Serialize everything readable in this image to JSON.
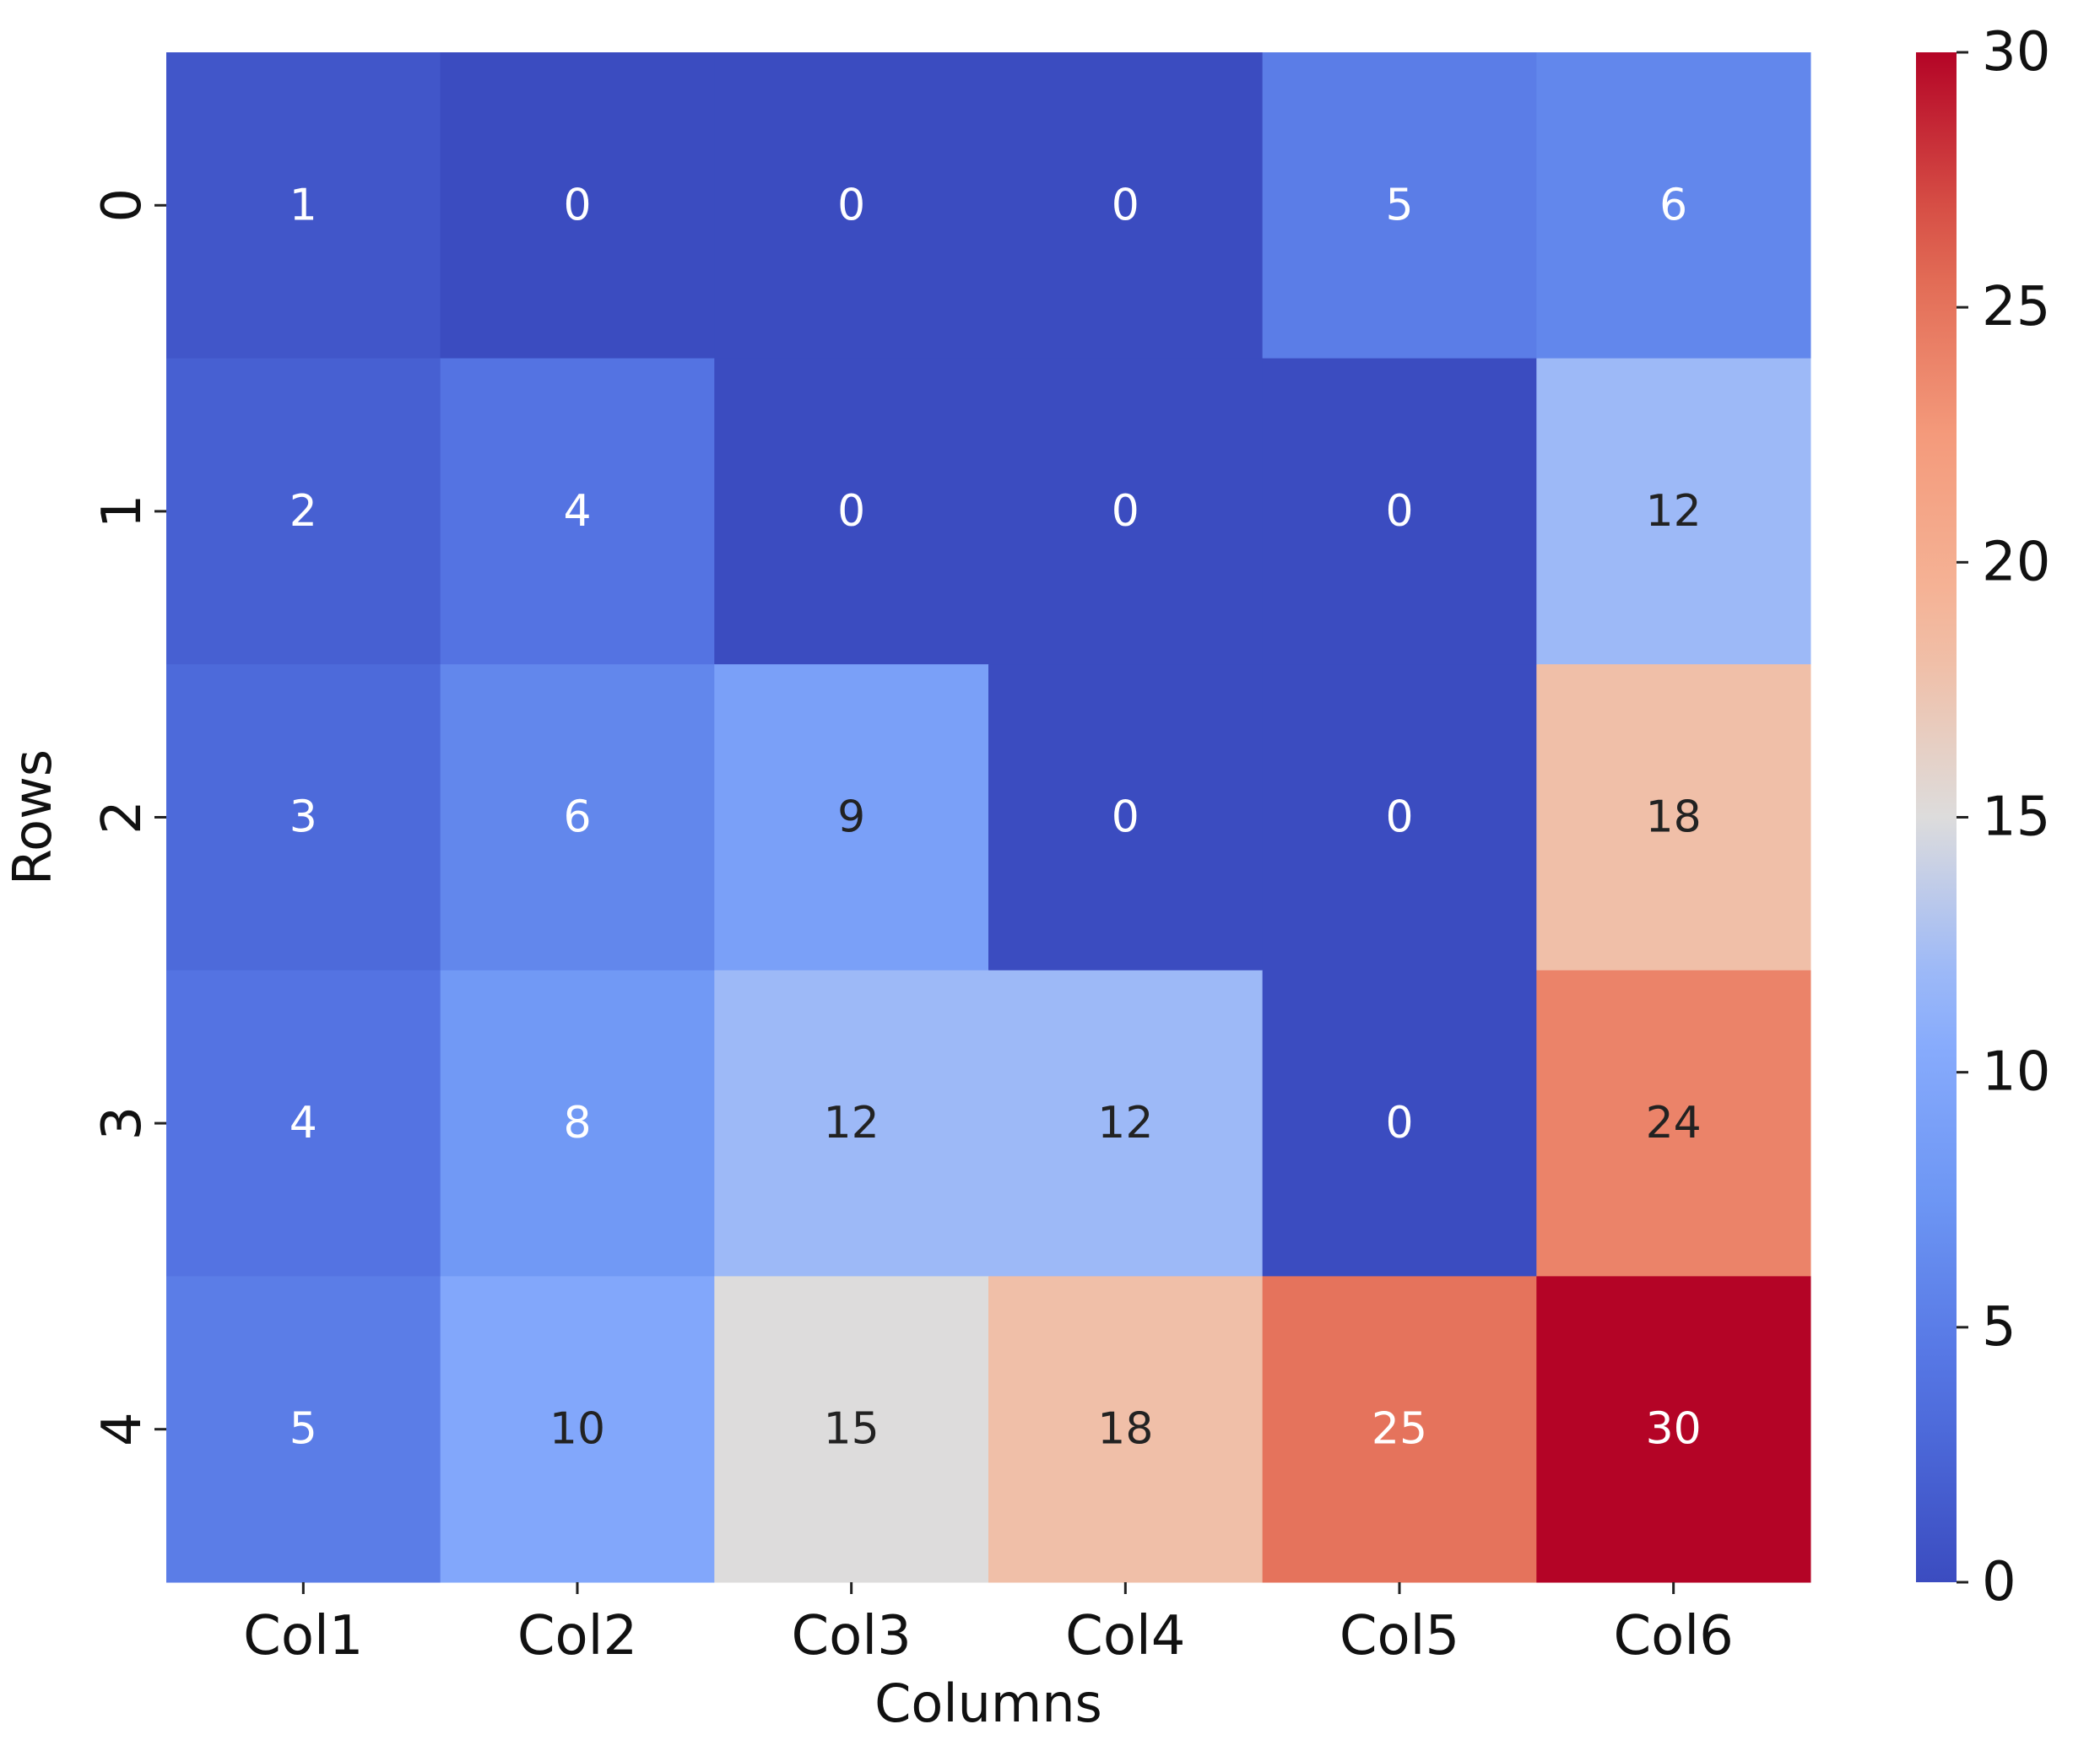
{
  "chart_data": {
    "type": "heatmap",
    "title": "",
    "xlabel": "Columns",
    "ylabel": "Rows",
    "columns": [
      "Col1",
      "Col2",
      "Col3",
      "Col4",
      "Col5",
      "Col6"
    ],
    "rows": [
      "0",
      "1",
      "2",
      "3",
      "4"
    ],
    "values": [
      [
        1,
        0,
        0,
        0,
        5,
        6
      ],
      [
        2,
        4,
        0,
        0,
        0,
        12
      ],
      [
        3,
        6,
        9,
        0,
        0,
        18
      ],
      [
        4,
        8,
        12,
        12,
        0,
        24
      ],
      [
        5,
        10,
        15,
        18,
        25,
        30
      ]
    ],
    "colormap": "coolwarm",
    "vmin": 0,
    "vmax": 30,
    "colorbar_ticks": [
      0,
      5,
      10,
      15,
      20,
      25,
      30
    ],
    "annotations": true,
    "colors": {
      "low": "#3b4cc0",
      "mid": "#dddcdc",
      "high": "#b40426"
    }
  }
}
